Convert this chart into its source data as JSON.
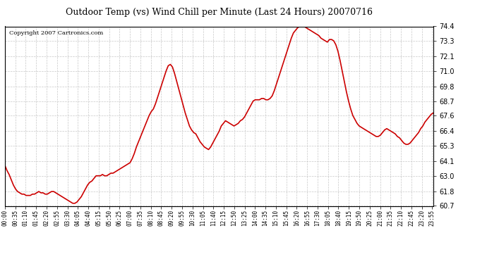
{
  "title": "Outdoor Temp (vs) Wind Chill per Minute (Last 24 Hours) 20070716",
  "copyright": "Copyright 2007 Cartronics.com",
  "line_color": "#cc0000",
  "background_color": "#ffffff",
  "grid_color": "#c8c8c8",
  "ylim": [
    60.7,
    74.4
  ],
  "yticks": [
    60.7,
    61.8,
    63.0,
    64.1,
    65.3,
    66.4,
    67.6,
    68.7,
    69.8,
    71.0,
    72.1,
    73.3,
    74.4
  ],
  "xtick_labels": [
    "00:00",
    "00:35",
    "01:10",
    "01:45",
    "02:20",
    "02:55",
    "03:30",
    "04:05",
    "04:40",
    "05:15",
    "05:50",
    "06:25",
    "07:00",
    "07:35",
    "08:10",
    "08:45",
    "09:20",
    "09:55",
    "10:30",
    "11:05",
    "11:40",
    "12:15",
    "12:50",
    "13:25",
    "14:00",
    "14:35",
    "15:10",
    "15:45",
    "16:20",
    "16:55",
    "17:30",
    "18:05",
    "18:40",
    "19:15",
    "19:50",
    "20:25",
    "21:00",
    "21:35",
    "22:10",
    "22:45",
    "23:20",
    "23:55"
  ],
  "data_points": [
    63.8,
    63.4,
    63.1,
    62.7,
    62.3,
    62.0,
    61.8,
    61.7,
    61.6,
    61.6,
    61.5,
    61.5,
    61.5,
    61.6,
    61.6,
    61.7,
    61.8,
    61.7,
    61.7,
    61.6,
    61.6,
    61.7,
    61.8,
    61.8,
    61.7,
    61.6,
    61.5,
    61.4,
    61.3,
    61.2,
    61.1,
    61.0,
    60.9,
    60.9,
    61.0,
    61.2,
    61.4,
    61.7,
    62.0,
    62.3,
    62.5,
    62.6,
    62.8,
    63.0,
    63.0,
    63.0,
    63.1,
    63.0,
    63.0,
    63.1,
    63.2,
    63.2,
    63.3,
    63.4,
    63.5,
    63.6,
    63.7,
    63.8,
    63.9,
    64.0,
    64.3,
    64.7,
    65.2,
    65.6,
    66.0,
    66.4,
    66.8,
    67.2,
    67.6,
    67.9,
    68.1,
    68.5,
    69.0,
    69.5,
    70.0,
    70.5,
    71.0,
    71.4,
    71.5,
    71.3,
    70.8,
    70.2,
    69.6,
    69.0,
    68.4,
    67.8,
    67.3,
    66.8,
    66.5,
    66.3,
    66.2,
    65.9,
    65.6,
    65.4,
    65.2,
    65.1,
    65.0,
    65.2,
    65.5,
    65.8,
    66.1,
    66.4,
    66.8,
    67.0,
    67.2,
    67.1,
    67.0,
    66.9,
    66.8,
    66.9,
    67.0,
    67.2,
    67.3,
    67.5,
    67.8,
    68.1,
    68.4,
    68.7,
    68.8,
    68.8,
    68.8,
    68.9,
    68.9,
    68.8,
    68.8,
    68.9,
    69.1,
    69.5,
    70.0,
    70.5,
    71.0,
    71.5,
    72.0,
    72.5,
    73.0,
    73.5,
    73.9,
    74.1,
    74.3,
    74.4,
    74.4,
    74.4,
    74.3,
    74.2,
    74.1,
    74.0,
    73.9,
    73.8,
    73.7,
    73.5,
    73.4,
    73.3,
    73.2,
    73.4,
    73.4,
    73.3,
    73.0,
    72.5,
    71.8,
    71.0,
    70.2,
    69.4,
    68.7,
    68.1,
    67.6,
    67.3,
    67.0,
    66.8,
    66.7,
    66.6,
    66.5,
    66.4,
    66.3,
    66.2,
    66.1,
    66.0,
    66.0,
    66.1,
    66.3,
    66.5,
    66.6,
    66.5,
    66.4,
    66.3,
    66.2,
    66.0,
    65.9,
    65.7,
    65.5,
    65.4,
    65.4,
    65.5,
    65.7,
    65.9,
    66.1,
    66.3,
    66.6,
    66.8,
    67.1,
    67.3,
    67.5,
    67.7,
    67.8
  ]
}
